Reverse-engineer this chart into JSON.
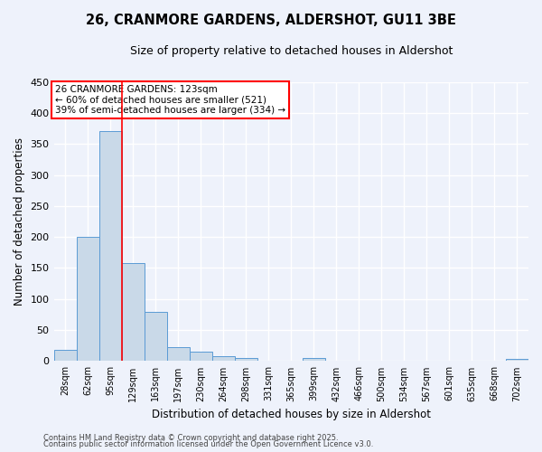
{
  "title": "26, CRANMORE GARDENS, ALDERSHOT, GU11 3BE",
  "subtitle": "Size of property relative to detached houses in Aldershot",
  "xlabel": "Distribution of detached houses by size in Aldershot",
  "ylabel": "Number of detached properties",
  "bin_labels": [
    "28sqm",
    "62sqm",
    "95sqm",
    "129sqm",
    "163sqm",
    "197sqm",
    "230sqm",
    "264sqm",
    "298sqm",
    "331sqm",
    "365sqm",
    "399sqm",
    "432sqm",
    "466sqm",
    "500sqm",
    "534sqm",
    "567sqm",
    "601sqm",
    "635sqm",
    "668sqm",
    "702sqm"
  ],
  "bar_heights": [
    18,
    200,
    370,
    158,
    80,
    22,
    15,
    8,
    5,
    0,
    0,
    5,
    0,
    0,
    0,
    0,
    0,
    0,
    0,
    0,
    4
  ],
  "bar_color": "#c9d9e8",
  "bar_edge_color": "#5b9bd5",
  "red_line_x": 2.5,
  "annotation_text": "26 CRANMORE GARDENS: 123sqm\n← 60% of detached houses are smaller (521)\n39% of semi-detached houses are larger (334) →",
  "annotation_box_color": "white",
  "annotation_box_edge_color": "red",
  "ylim": [
    0,
    450
  ],
  "yticks": [
    0,
    50,
    100,
    150,
    200,
    250,
    300,
    350,
    400,
    450
  ],
  "footer1": "Contains HM Land Registry data © Crown copyright and database right 2025.",
  "footer2": "Contains public sector information licensed under the Open Government Licence v3.0.",
  "background_color": "#eef2fb",
  "grid_color": "white",
  "fig_width": 6.0,
  "fig_height": 5.0,
  "dpi": 100
}
